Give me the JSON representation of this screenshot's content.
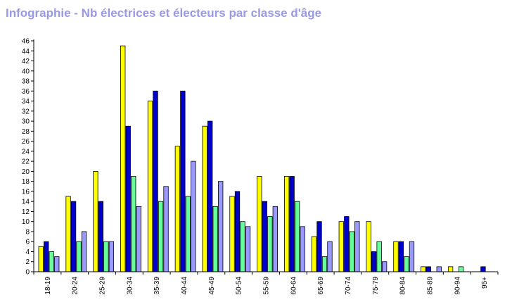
{
  "title": "Infographie - Nb électrices et électeurs par classe d'âge",
  "colors": {
    "title": "#9999e6",
    "series": [
      "#ffff00",
      "#0000cc",
      "#66ff99",
      "#9999ff"
    ],
    "axis": "#000000"
  },
  "chart_data": {
    "type": "bar",
    "title": "Infographie - Nb électrices et électeurs par classe d'âge",
    "xlabel": "",
    "ylabel": "",
    "ylim": [
      0,
      46
    ],
    "y_ticks": [
      0,
      2,
      4,
      6,
      8,
      10,
      12,
      14,
      16,
      18,
      20,
      22,
      24,
      26,
      28,
      30,
      32,
      34,
      36,
      38,
      40,
      42,
      44,
      46
    ],
    "grid": false,
    "legend": "none",
    "categories": [
      "18-19",
      "20-24",
      "25-29",
      "30-34",
      "35-39",
      "40-44",
      "45-49",
      "50-54",
      "55-59",
      "60-64",
      "65-69",
      "70-74",
      "75-79",
      "80-84",
      "85-89",
      "90-94",
      "95+"
    ],
    "series": [
      {
        "values": [
          5,
          15,
          20,
          45,
          34,
          25,
          29,
          15,
          19,
          19,
          7,
          10,
          10,
          6,
          1,
          1,
          0
        ]
      },
      {
        "values": [
          6,
          14,
          14,
          29,
          36,
          36,
          30,
          16,
          14,
          19,
          10,
          11,
          4,
          6,
          1,
          0,
          1
        ]
      },
      {
        "values": [
          4,
          6,
          6,
          19,
          14,
          15,
          13,
          10,
          11,
          14,
          3,
          8,
          6,
          3,
          0,
          1,
          0
        ]
      },
      {
        "values": [
          3,
          8,
          6,
          13,
          17,
          22,
          18,
          9,
          13,
          9,
          6,
          10,
          2,
          6,
          1,
          0,
          0
        ]
      }
    ]
  }
}
